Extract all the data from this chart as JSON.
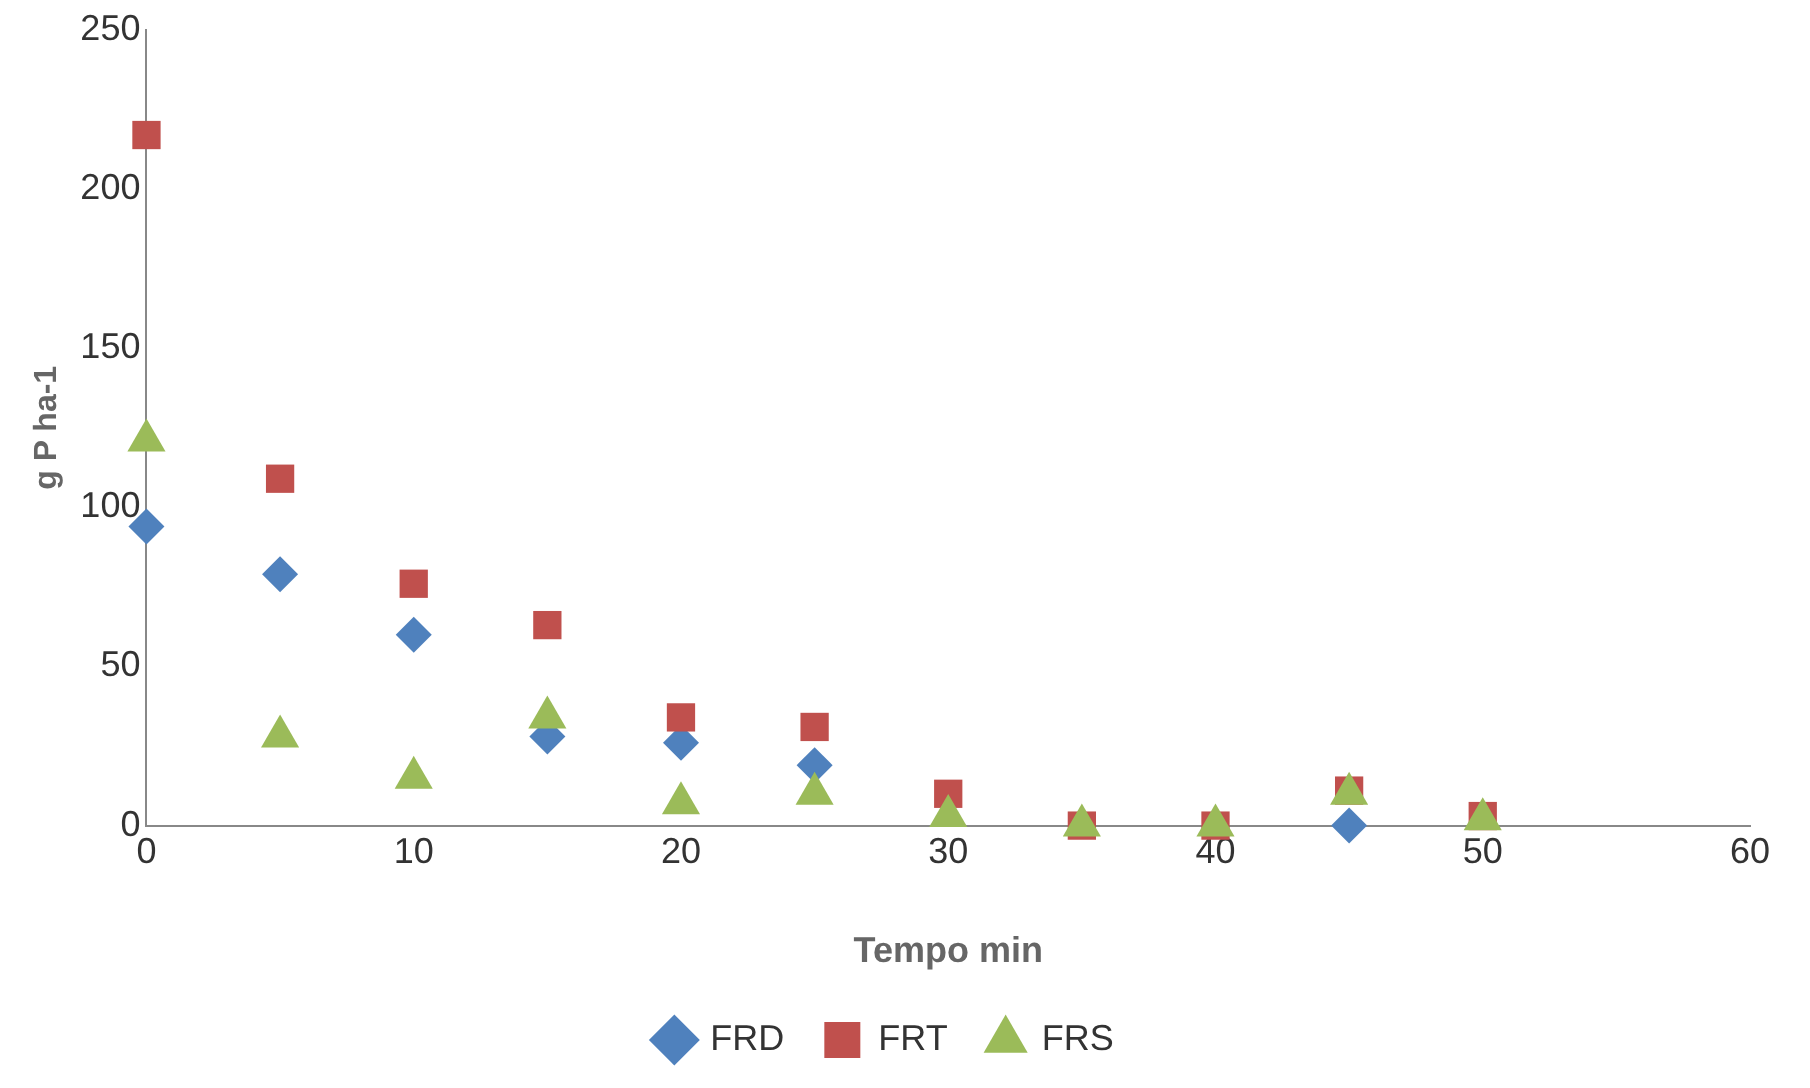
{
  "chart_data": {
    "type": "scatter",
    "xlabel": "Tempo min",
    "ylabel": "g P ha-1",
    "x": [
      0,
      5,
      10,
      15,
      20,
      25,
      30,
      35,
      40,
      45,
      50
    ],
    "xlim": [
      0,
      60
    ],
    "xticks": [
      0,
      10,
      20,
      30,
      40,
      50,
      60
    ],
    "ylim": [
      0,
      250
    ],
    "yticks": [
      0,
      50,
      100,
      150,
      200,
      250
    ],
    "grid": false,
    "legend": "bottom",
    "series": [
      {
        "name": "FRD",
        "color": "#4f81bd",
        "marker": "diamond",
        "values": [
          94,
          79,
          60,
          28,
          26,
          19,
          null,
          null,
          null,
          0,
          null
        ]
      },
      {
        "name": "FRT",
        "color": "#c0504d",
        "marker": "square",
        "values": [
          217,
          109,
          76,
          63,
          34,
          31,
          10,
          0,
          0,
          11,
          3
        ]
      },
      {
        "name": "FRS",
        "color": "#9bbb59",
        "marker": "triangle",
        "values": [
          121,
          28,
          15,
          34,
          7,
          10,
          3,
          0,
          0,
          10,
          2
        ]
      }
    ]
  }
}
